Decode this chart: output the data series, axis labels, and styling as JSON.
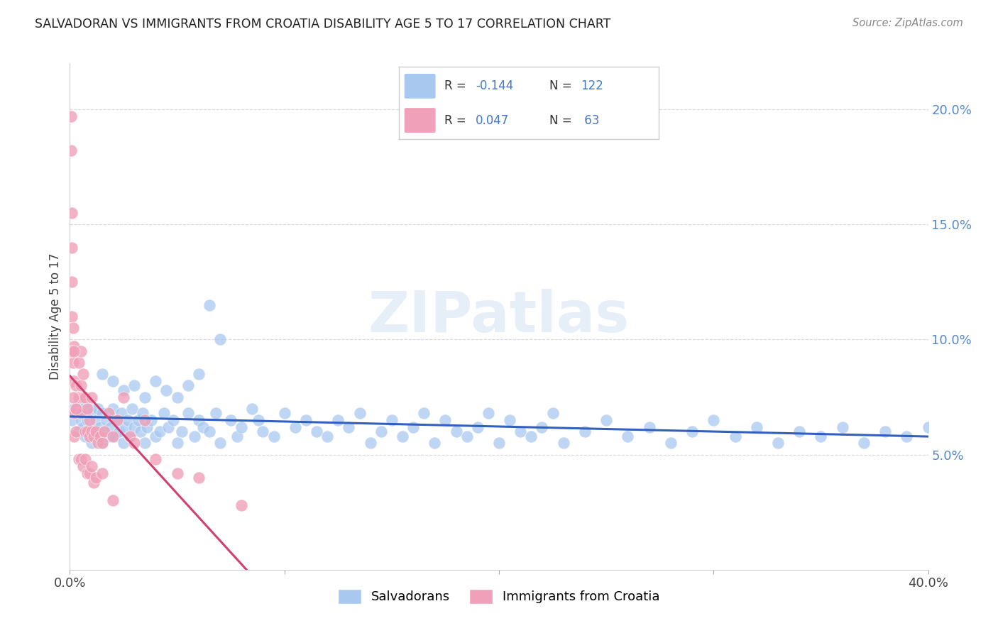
{
  "title": "SALVADORAN VS IMMIGRANTS FROM CROATIA DISABILITY AGE 5 TO 17 CORRELATION CHART",
  "source": "Source: ZipAtlas.com",
  "ylabel": "Disability Age 5 to 17",
  "xlim": [
    0.0,
    0.4
  ],
  "ylim": [
    0.0,
    0.22
  ],
  "yticks": [
    0.05,
    0.1,
    0.15,
    0.2
  ],
  "ytick_labels": [
    "5.0%",
    "10.0%",
    "15.0%",
    "20.0%"
  ],
  "xticks": [
    0.0,
    0.1,
    0.2,
    0.3,
    0.4
  ],
  "blue_color": "#a8c8f0",
  "pink_color": "#f0a0b8",
  "line_blue": "#3060c0",
  "line_pink": "#d04070",
  "line_dashed_color": "#c8a8c8",
  "background_color": "#ffffff",
  "grid_color": "#d8d8d8",
  "title_color": "#222222",
  "watermark": "ZIPatlas",
  "blue_x": [
    0.001,
    0.002,
    0.003,
    0.004,
    0.004,
    0.005,
    0.006,
    0.006,
    0.007,
    0.007,
    0.008,
    0.008,
    0.009,
    0.009,
    0.01,
    0.01,
    0.011,
    0.012,
    0.012,
    0.013,
    0.013,
    0.014,
    0.015,
    0.015,
    0.016,
    0.017,
    0.018,
    0.019,
    0.02,
    0.021,
    0.022,
    0.023,
    0.024,
    0.025,
    0.026,
    0.027,
    0.028,
    0.029,
    0.03,
    0.032,
    0.033,
    0.034,
    0.035,
    0.036,
    0.038,
    0.04,
    0.042,
    0.044,
    0.046,
    0.048,
    0.05,
    0.052,
    0.055,
    0.058,
    0.06,
    0.062,
    0.065,
    0.068,
    0.07,
    0.075,
    0.078,
    0.08,
    0.085,
    0.088,
    0.09,
    0.095,
    0.1,
    0.105,
    0.11,
    0.115,
    0.12,
    0.125,
    0.13,
    0.135,
    0.14,
    0.145,
    0.15,
    0.155,
    0.16,
    0.165,
    0.17,
    0.175,
    0.18,
    0.185,
    0.19,
    0.195,
    0.2,
    0.205,
    0.21,
    0.215,
    0.22,
    0.225,
    0.23,
    0.24,
    0.25,
    0.26,
    0.27,
    0.28,
    0.29,
    0.3,
    0.31,
    0.32,
    0.33,
    0.34,
    0.35,
    0.36,
    0.37,
    0.38,
    0.39,
    0.4,
    0.015,
    0.02,
    0.025,
    0.03,
    0.035,
    0.04,
    0.045,
    0.05,
    0.055,
    0.06,
    0.065,
    0.07
  ],
  "blue_y": [
    0.065,
    0.07,
    0.068,
    0.072,
    0.06,
    0.065,
    0.062,
    0.068,
    0.058,
    0.072,
    0.06,
    0.065,
    0.058,
    0.07,
    0.055,
    0.068,
    0.062,
    0.06,
    0.065,
    0.058,
    0.07,
    0.062,
    0.055,
    0.068,
    0.06,
    0.065,
    0.058,
    0.062,
    0.07,
    0.058,
    0.065,
    0.06,
    0.068,
    0.055,
    0.062,
    0.065,
    0.058,
    0.07,
    0.062,
    0.065,
    0.06,
    0.068,
    0.055,
    0.062,
    0.065,
    0.058,
    0.06,
    0.068,
    0.062,
    0.065,
    0.055,
    0.06,
    0.068,
    0.058,
    0.065,
    0.062,
    0.06,
    0.068,
    0.055,
    0.065,
    0.058,
    0.062,
    0.07,
    0.065,
    0.06,
    0.058,
    0.068,
    0.062,
    0.065,
    0.06,
    0.058,
    0.065,
    0.062,
    0.068,
    0.055,
    0.06,
    0.065,
    0.058,
    0.062,
    0.068,
    0.055,
    0.065,
    0.06,
    0.058,
    0.062,
    0.068,
    0.055,
    0.065,
    0.06,
    0.058,
    0.062,
    0.068,
    0.055,
    0.06,
    0.065,
    0.058,
    0.062,
    0.055,
    0.06,
    0.065,
    0.058,
    0.062,
    0.055,
    0.06,
    0.058,
    0.062,
    0.055,
    0.06,
    0.058,
    0.062,
    0.085,
    0.082,
    0.078,
    0.08,
    0.075,
    0.082,
    0.078,
    0.075,
    0.08,
    0.085,
    0.115,
    0.1
  ],
  "pink_x": [
    0.0005,
    0.0005,
    0.001,
    0.001,
    0.001,
    0.001,
    0.0015,
    0.0015,
    0.002,
    0.002,
    0.002,
    0.002,
    0.003,
    0.003,
    0.003,
    0.004,
    0.004,
    0.005,
    0.005,
    0.005,
    0.006,
    0.006,
    0.007,
    0.007,
    0.008,
    0.008,
    0.009,
    0.009,
    0.01,
    0.01,
    0.011,
    0.012,
    0.013,
    0.014,
    0.015,
    0.016,
    0.018,
    0.02,
    0.022,
    0.025,
    0.028,
    0.03,
    0.035,
    0.04,
    0.05,
    0.06,
    0.08,
    0.0005,
    0.001,
    0.0015,
    0.002,
    0.003,
    0.004,
    0.005,
    0.006,
    0.007,
    0.008,
    0.009,
    0.01,
    0.011,
    0.012,
    0.015,
    0.02
  ],
  "pink_y": [
    0.197,
    0.182,
    0.155,
    0.14,
    0.125,
    0.11,
    0.105,
    0.09,
    0.097,
    0.082,
    0.068,
    0.058,
    0.08,
    0.07,
    0.06,
    0.09,
    0.075,
    0.095,
    0.08,
    0.068,
    0.085,
    0.075,
    0.075,
    0.06,
    0.07,
    0.06,
    0.065,
    0.058,
    0.075,
    0.06,
    0.058,
    0.06,
    0.055,
    0.058,
    0.055,
    0.06,
    0.068,
    0.058,
    0.065,
    0.075,
    0.058,
    0.055,
    0.065,
    0.048,
    0.042,
    0.04,
    0.028,
    0.095,
    0.095,
    0.075,
    0.095,
    0.07,
    0.048,
    0.048,
    0.045,
    0.048,
    0.042,
    0.042,
    0.045,
    0.038,
    0.04,
    0.042,
    0.03
  ]
}
